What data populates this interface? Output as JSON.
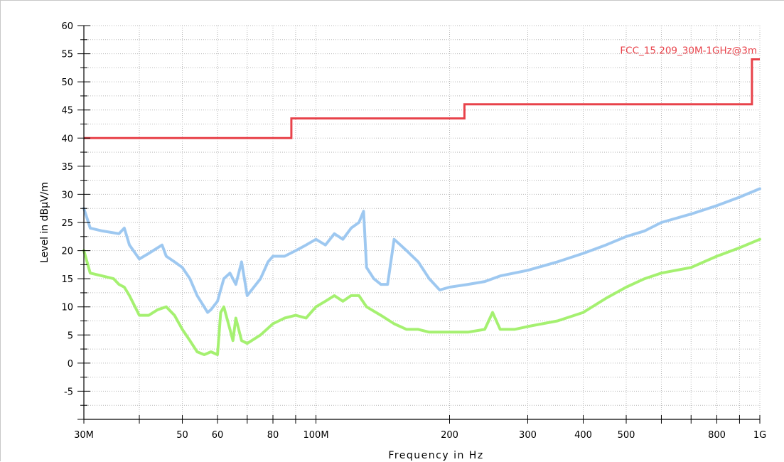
{
  "chart_data": {
    "type": "line",
    "title": "",
    "xlabel": "Frequency in Hz",
    "ylabel": "Level in dBµV/m",
    "x_scale": "log",
    "xlim": [
      30000000,
      1000000000
    ],
    "ylim": [
      -10,
      60
    ],
    "grid": true,
    "x_tick_labels": [
      {
        "value": 30000000,
        "label": "30M"
      },
      {
        "value": 50000000,
        "label": "50"
      },
      {
        "value": 60000000,
        "label": "60"
      },
      {
        "value": 80000000,
        "label": "80"
      },
      {
        "value": 100000000,
        "label": "100M"
      },
      {
        "value": 200000000,
        "label": "200"
      },
      {
        "value": 300000000,
        "label": "300"
      },
      {
        "value": 400000000,
        "label": "400"
      },
      {
        "value": 500000000,
        "label": "500"
      },
      {
        "value": 800000000,
        "label": "800"
      },
      {
        "value": 1000000000,
        "label": "1G"
      }
    ],
    "y_ticks": [
      60,
      55,
      50,
      45,
      40,
      35,
      30,
      25,
      20,
      15,
      10,
      5,
      0,
      -5
    ],
    "limit_line": {
      "name": "FCC_15.209_30M-1GHz@3m",
      "color": "#e8424a",
      "x": [
        30000000,
        88000000,
        88000000,
        216000000,
        216000000,
        960000000,
        960000000,
        1000000000
      ],
      "y": [
        40,
        40,
        43.5,
        43.5,
        46,
        46,
        54,
        54
      ]
    },
    "series": [
      {
        "color": "#9cc7f0",
        "x": [
          30000000,
          31000000,
          33000000,
          36000000,
          37000000,
          38000000,
          40000000,
          42000000,
          45000000,
          46000000,
          48000000,
          50000000,
          52000000,
          54000000,
          57000000,
          58000000,
          60000000,
          62000000,
          64000000,
          66000000,
          68000000,
          70000000,
          75000000,
          78000000,
          80000000,
          85000000,
          90000000,
          95000000,
          100000000,
          105000000,
          110000000,
          115000000,
          120000000,
          125000000,
          128000000,
          130000000,
          135000000,
          140000000,
          145000000,
          150000000,
          155000000,
          160000000,
          170000000,
          180000000,
          190000000,
          200000000,
          220000000,
          240000000,
          260000000,
          300000000,
          350000000,
          400000000,
          450000000,
          500000000,
          550000000,
          600000000,
          700000000,
          800000000,
          900000000,
          1000000000
        ],
        "y": [
          27.5,
          24,
          23.5,
          23,
          24,
          21,
          18.5,
          19.5,
          21,
          19,
          18,
          17,
          15,
          12,
          9,
          9.5,
          11,
          15,
          16,
          14,
          18,
          12,
          15,
          18,
          19,
          19,
          20,
          21,
          22,
          21,
          23,
          22,
          24,
          25,
          27,
          17,
          15,
          14,
          14,
          22,
          21,
          20,
          18,
          15,
          13,
          13.5,
          14,
          14.5,
          15.5,
          16.5,
          18,
          19.5,
          21,
          22.5,
          23.5,
          25,
          26.5,
          28,
          29.5,
          31
        ]
      },
      {
        "color": "#a3f06e",
        "x": [
          30000000,
          31000000,
          33000000,
          35000000,
          36000000,
          37000000,
          38000000,
          40000000,
          42000000,
          44000000,
          46000000,
          48000000,
          50000000,
          52000000,
          54000000,
          56000000,
          58000000,
          60000000,
          61000000,
          62000000,
          64000000,
          65000000,
          66000000,
          68000000,
          70000000,
          75000000,
          80000000,
          85000000,
          90000000,
          95000000,
          100000000,
          105000000,
          110000000,
          115000000,
          120000000,
          125000000,
          130000000,
          140000000,
          150000000,
          160000000,
          170000000,
          180000000,
          200000000,
          220000000,
          240000000,
          250000000,
          260000000,
          280000000,
          300000000,
          350000000,
          400000000,
          450000000,
          500000000,
          550000000,
          600000000,
          700000000,
          800000000,
          900000000,
          1000000000
        ],
        "y": [
          20,
          16,
          15.5,
          15,
          14,
          13.5,
          12,
          8.5,
          8.5,
          9.5,
          10,
          8.5,
          6,
          4,
          2,
          1.5,
          2,
          1.5,
          9,
          10,
          6,
          4,
          8,
          4,
          3.5,
          5,
          7,
          8,
          8.5,
          8,
          10,
          11,
          12,
          11,
          12,
          12,
          10,
          8.5,
          7,
          6,
          6,
          5.5,
          5.5,
          5.5,
          6,
          9,
          6,
          6,
          6.5,
          7.5,
          9,
          11.5,
          13.5,
          15,
          16,
          17,
          19,
          20.5,
          22
        ]
      }
    ]
  }
}
